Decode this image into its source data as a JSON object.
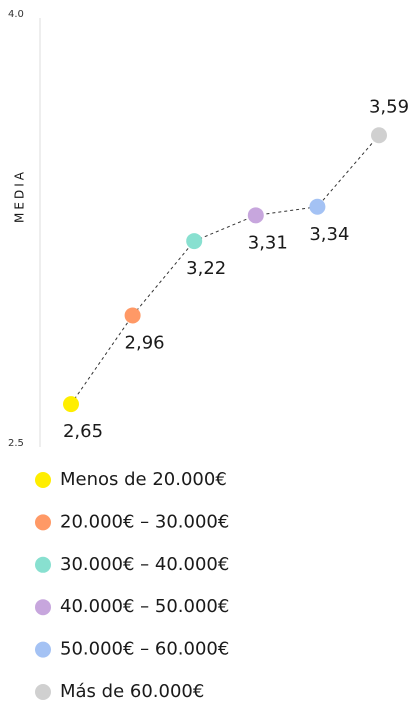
{
  "chart_data": {
    "type": "line",
    "y_label": "MEDIA",
    "categories": [
      "Menos de 20.000€",
      "20.000€ – 30.000€",
      "30.000€ – 40.000€",
      "40.000€ – 50.000€",
      "50.000€ – 60.000€",
      "Más de 60.000€"
    ],
    "values": [
      2.65,
      2.96,
      3.22,
      3.31,
      3.34,
      3.59
    ],
    "value_labels": [
      "2,65",
      "2,96",
      "3,22",
      "3,31",
      "3,34",
      "3,59"
    ],
    "colors": [
      "#ffee00",
      "#ff9966",
      "#88e0d0",
      "#c7a6dd",
      "#a4c2f4",
      "#d0d0d0"
    ],
    "line_color": "#333333",
    "line_style": "dashed",
    "ylim": [
      2.5,
      4.0
    ],
    "yticks": [
      2.5,
      {
        "value": 4.0,
        "label": "4.0"
      }
    ],
    "grid": false
  }
}
